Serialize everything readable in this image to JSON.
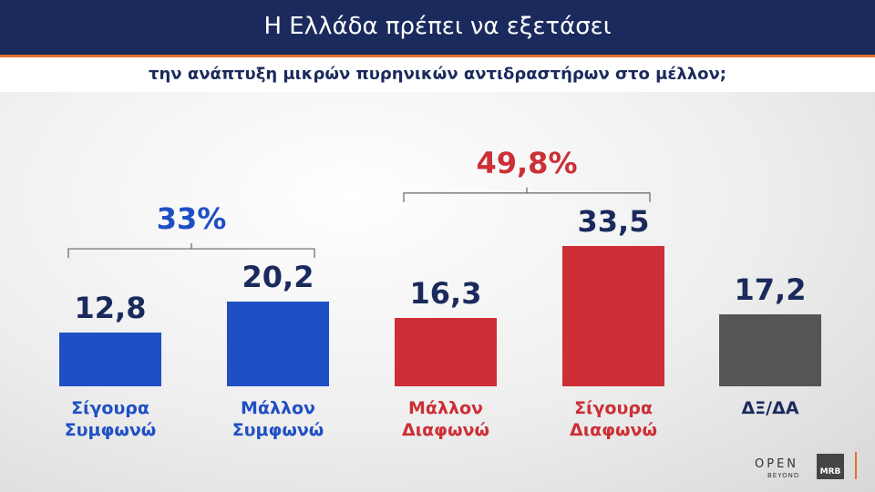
{
  "chart_data": {
    "type": "bar",
    "title": "Η Ελλάδα πρέπει να εξετάσει",
    "subtitle": "την ανάπτυξη μικρών πυρηνικών αντιδραστήρων στο μέλλον;",
    "categories": [
      "Σίγουρα Συμφωνώ",
      "Μάλλον Συμφωνώ",
      "Μάλλον Διαφωνώ",
      "Σίγουρα Διαφωνώ",
      "ΔΞ/ΔΑ"
    ],
    "values": [
      12.8,
      20.2,
      16.3,
      33.5,
      17.2
    ],
    "value_labels": [
      "12,8",
      "20,2",
      "16,3",
      "33,5",
      "17,2"
    ],
    "colors": [
      "#1f4fc4",
      "#1f4fc4",
      "#cc2f35",
      "#cc2f35",
      "#555555"
    ],
    "label_colors": [
      "#1f4fc4",
      "#1f4fc4",
      "#cc2f35",
      "#cc2f35",
      "#1b2a5c"
    ],
    "groups": [
      {
        "value": 33,
        "label": "33%",
        "from": 0,
        "to": 1,
        "color": "#1f4fc4"
      },
      {
        "value": 49.8,
        "label": "49,8%",
        "from": 2,
        "to": 3,
        "color": "#cc2f35"
      }
    ],
    "logos": [
      "OPEN",
      "BEYOND",
      "MRB"
    ]
  }
}
